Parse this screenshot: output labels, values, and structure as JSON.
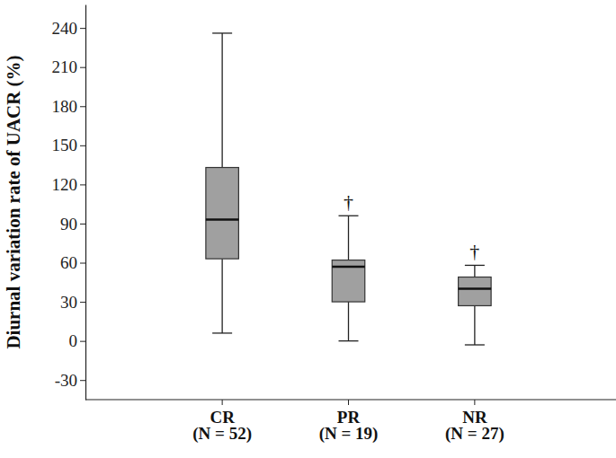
{
  "chart_data": {
    "type": "box",
    "y_label": "Diurnal variation rate of UACR (%)",
    "categories": [
      "CR",
      "PR",
      "NR"
    ],
    "n_labels": [
      "(N = 52)",
      "(N = 19)",
      "(N = 27)"
    ],
    "values": [
      {
        "min": 6,
        "q1": 63,
        "median": 93,
        "q3": 133,
        "max": 236
      },
      {
        "min": 0,
        "q1": 30,
        "median": 57,
        "q3": 62,
        "max": 96
      },
      {
        "min": -3,
        "q1": 27,
        "median": 40,
        "q3": 49,
        "max": 58
      }
    ],
    "annotations": [
      null,
      "†",
      "†"
    ],
    "color": "#a0a0a0",
    "ylim": [
      -45,
      258
    ],
    "yticks": [
      -30,
      0,
      30,
      60,
      90,
      120,
      150,
      180,
      210,
      240
    ],
    "grid": false
  }
}
